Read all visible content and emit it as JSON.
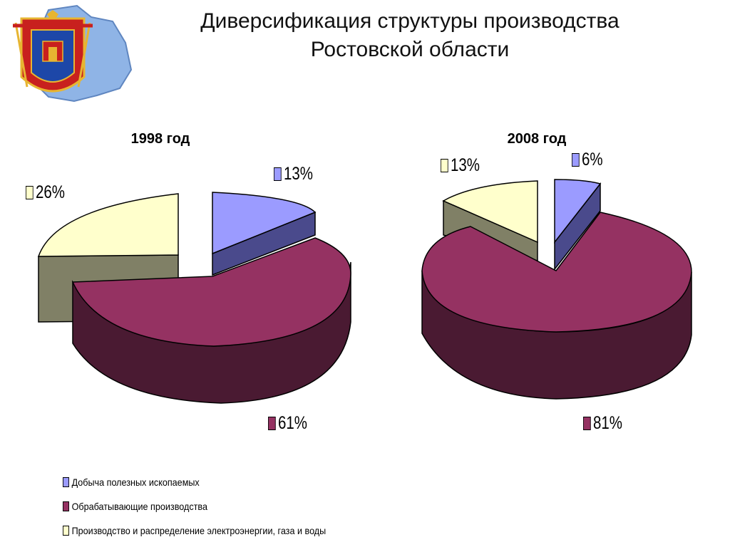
{
  "title_line1": "Диверсификация структуры производства",
  "title_line2": "Ростовской области",
  "emblem": "rostov-oblast-coat-of-arms",
  "colors": {
    "mining_top": "#9b9bff",
    "mining_side": "#4a4a8c",
    "manufacturing_top": "#953262",
    "manufacturing_side": "#4a1a32",
    "energy_top": "#ffffcc",
    "energy_side": "#808066"
  },
  "chart_data": [
    {
      "type": "pie",
      "title": "1998 год",
      "categories": [
        "Добыча полезных ископаемых",
        "Обрабатывающие производства",
        "Производство и распределение электроэнергии, газа и воды"
      ],
      "values": [
        13,
        61,
        26
      ],
      "labels": [
        "13%",
        "61%",
        "26%"
      ],
      "exploded": true,
      "three_d": true
    },
    {
      "type": "pie",
      "title": "2008 год",
      "categories": [
        "Добыча полезных ископаемых",
        "Обрабатывающие производства",
        "Производство и распределение электроэнергии, газа и воды"
      ],
      "values": [
        6,
        81,
        13
      ],
      "labels": [
        "6%",
        "81%",
        "13%"
      ],
      "exploded": true,
      "three_d": true
    }
  ],
  "legend": {
    "placement": "bottom-left",
    "items": [
      "Добыча полезных ископаемых",
      "Обрабатывающие производства",
      "Производство и распределение электроэнергии, газа и воды"
    ]
  }
}
